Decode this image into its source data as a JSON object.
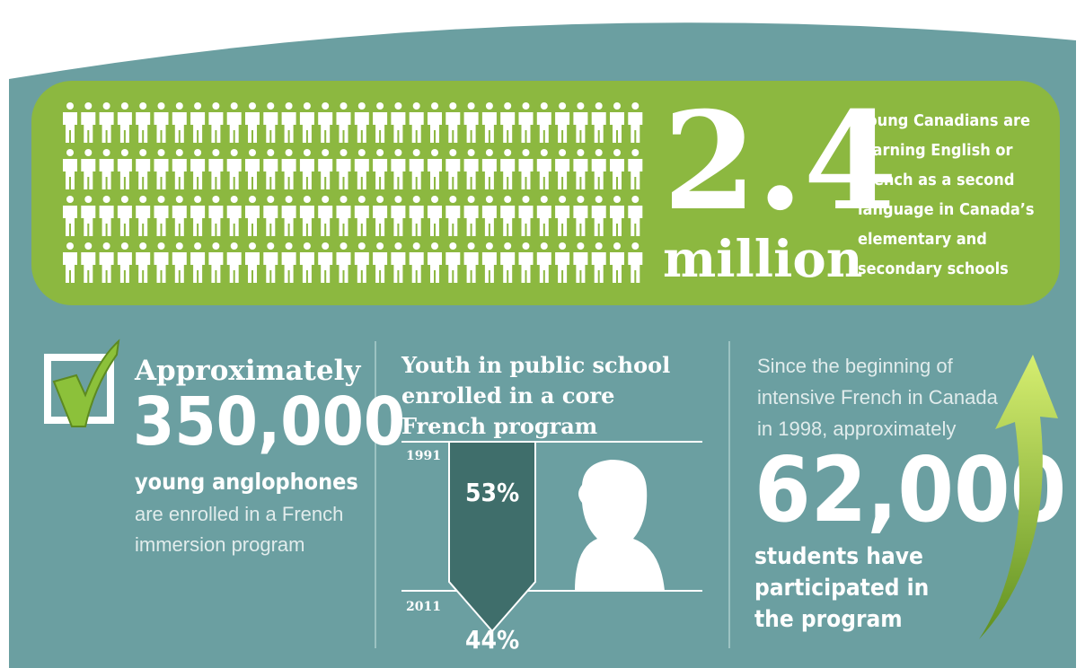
{
  "banner": {
    "number": "2.4",
    "unit": "million",
    "description": [
      "young Canadians are",
      "learning English or",
      "French as a second",
      "language in Canada’s",
      "elementary and",
      "secondary schools"
    ]
  },
  "immersion": {
    "heading": "Approximately",
    "number": "350,000",
    "subtitle": "young anglophones",
    "text": [
      "are enrolled in a French",
      "immersion program"
    ]
  },
  "core_french": {
    "title": [
      "Youth in public school",
      "enrolled in a core",
      "French program"
    ],
    "chart_data": {
      "type": "drop",
      "categories": [
        "1991",
        "2011"
      ],
      "values": [
        53,
        44
      ],
      "value_labels": [
        "53%",
        "44%"
      ]
    }
  },
  "intensive": {
    "intro": [
      "Since the beginning of",
      "intensive French in Canada",
      "in 1998, approximately"
    ],
    "number": "62,000",
    "text": [
      "students have",
      "participated in",
      "the program"
    ]
  }
}
